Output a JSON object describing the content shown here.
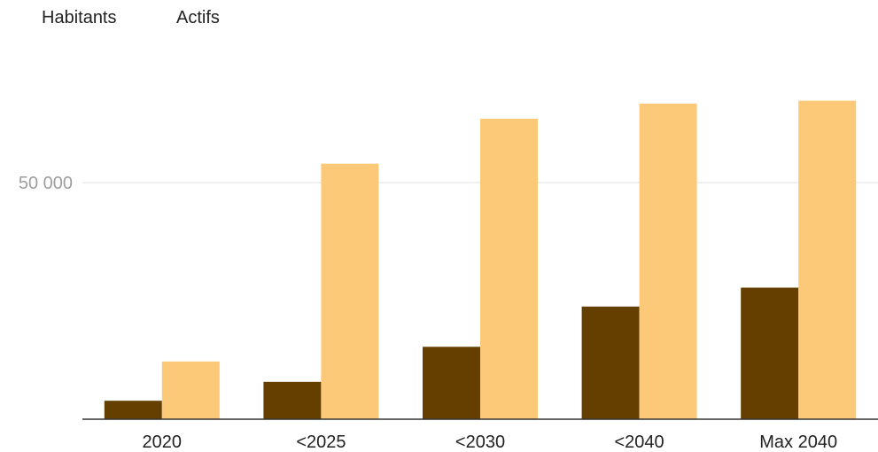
{
  "chart_data": {
    "type": "bar",
    "categories": [
      "2020",
      "<2025",
      "<2030",
      "<2040",
      "Max 2040"
    ],
    "series": [
      {
        "name": "Habitants",
        "values": [
          3900,
          7900,
          15300,
          23800,
          27800
        ],
        "color": "#643f00"
      },
      {
        "name": "Actifs",
        "values": [
          12200,
          54000,
          63500,
          66700,
          67300
        ],
        "color": "#fcc978"
      }
    ],
    "yticks": [
      {
        "value": 50000,
        "label": "50 000"
      }
    ],
    "ylim": [
      0,
      87000
    ],
    "grid": true,
    "legend": "top-left",
    "baseline_color": "#333333",
    "grid_color": "#e0e0e0"
  }
}
